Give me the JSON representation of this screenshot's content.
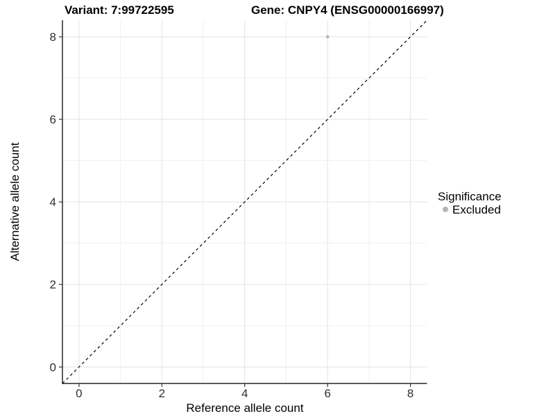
{
  "titles": {
    "variant": "Variant: 7:99722595",
    "gene": "Gene: CNPY4 (ENSG00000166997)"
  },
  "chart_data": {
    "type": "scatter",
    "title_left": "Variant: 7:99722595",
    "title_right": "Gene: CNPY4 (ENSG00000166997)",
    "xlabel": "Reference allele count",
    "ylabel": "Alternative allele count",
    "xlim": [
      -0.4,
      8.4
    ],
    "ylim": [
      -0.4,
      8.4
    ],
    "xticks": [
      0,
      2,
      4,
      6,
      8
    ],
    "yticks": [
      0,
      2,
      4,
      6,
      8
    ],
    "minor_xticks": [
      1,
      3,
      5,
      7
    ],
    "minor_yticks": [
      1,
      3,
      5,
      7
    ],
    "grid": "on",
    "series": [
      {
        "name": "Excluded",
        "color": "#b5b5b5",
        "points": [
          {
            "x": 6,
            "y": 8
          }
        ]
      }
    ],
    "reference_line": {
      "kind": "identity",
      "equation": "y = x",
      "style": "dashed",
      "color": "#000000"
    },
    "legend": {
      "title": "Significance",
      "position": "right",
      "entries": [
        {
          "label": "Excluded",
          "color": "#b5b5b5"
        }
      ]
    }
  },
  "colors": {
    "background": "#ffffff",
    "grid_major": "#e3e3e3",
    "grid_minor": "#f0f0f0",
    "axis_line": "#262626",
    "tick_mark": "#333333",
    "point": "#b5b5b5"
  }
}
